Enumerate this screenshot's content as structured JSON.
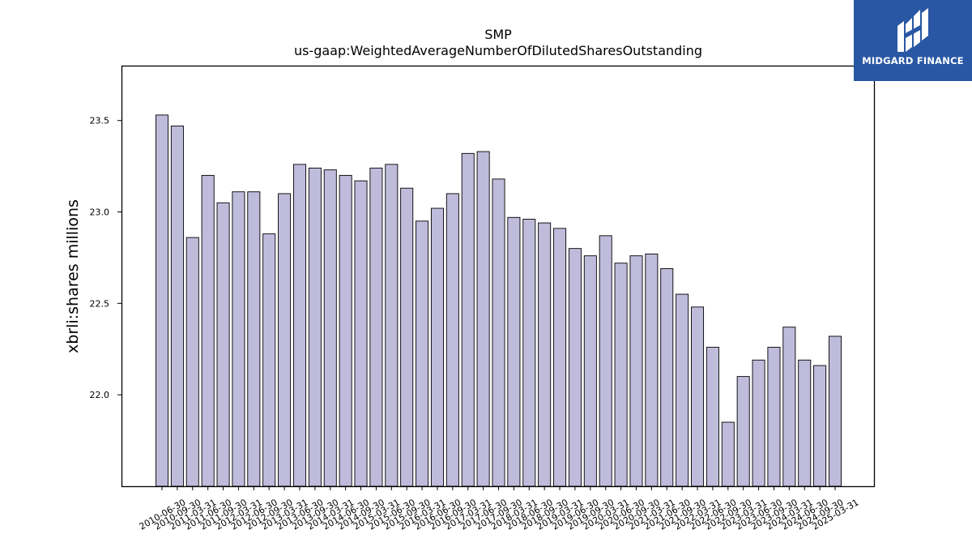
{
  "chart_data": {
    "type": "bar",
    "title": "SMP",
    "subtitle": "us-gaap:WeightedAverageNumberOfDilutedSharesOutstanding",
    "xlabel": "",
    "ylabel": "xbrli:shares millions",
    "ylim": [
      21.5,
      23.8
    ],
    "yticks": [
      22.0,
      22.5,
      23.0,
      23.5
    ],
    "ytick_labels": [
      "22.0",
      "22.5",
      "23.0",
      "23.5"
    ],
    "grid": false,
    "bar_color": "#bfbbdb",
    "bar_edge_color": "#000000",
    "categories": [
      "2010-06-30",
      "2010-09-30",
      "2011-03-31",
      "2011-06-30",
      "2011-09-30",
      "2012-03-31",
      "2012-06-30",
      "2012-09-30",
      "2013-03-31",
      "2013-06-30",
      "2013-09-30",
      "2014-03-31",
      "2014-06-30",
      "2014-09-30",
      "2015-03-31",
      "2015-06-30",
      "2015-09-30",
      "2016-03-31",
      "2016-06-30",
      "2016-09-30",
      "2017-03-31",
      "2017-06-30",
      "2017-09-30",
      "2018-03-31",
      "2018-06-30",
      "2018-09-30",
      "2019-03-31",
      "2019-06-30",
      "2019-09-30",
      "2020-03-31",
      "2020-06-30",
      "2020-09-30",
      "2021-03-31",
      "2021-06-30",
      "2021-09-30",
      "2022-03-31",
      "2022-06-30",
      "2022-09-30",
      "2023-03-31",
      "2023-06-30",
      "2023-09-30",
      "2024-03-31",
      "2024-06-30",
      "2024-09-30",
      "2025-03-31"
    ],
    "values": [
      23.53,
      23.47,
      22.86,
      23.2,
      23.05,
      23.11,
      23.11,
      22.88,
      23.1,
      23.26,
      23.24,
      23.23,
      23.2,
      23.17,
      23.24,
      23.26,
      23.13,
      22.95,
      23.02,
      23.1,
      23.32,
      23.33,
      23.18,
      22.97,
      22.96,
      22.94,
      22.91,
      22.8,
      22.76,
      22.87,
      22.72,
      22.76,
      22.77,
      22.69,
      22.55,
      22.48,
      22.26,
      21.85,
      22.1,
      22.19,
      22.26,
      22.37,
      22.19,
      22.16,
      22.32
    ]
  },
  "logo": {
    "text": "MIDGARD FINANCE",
    "background": "#2957a4"
  }
}
